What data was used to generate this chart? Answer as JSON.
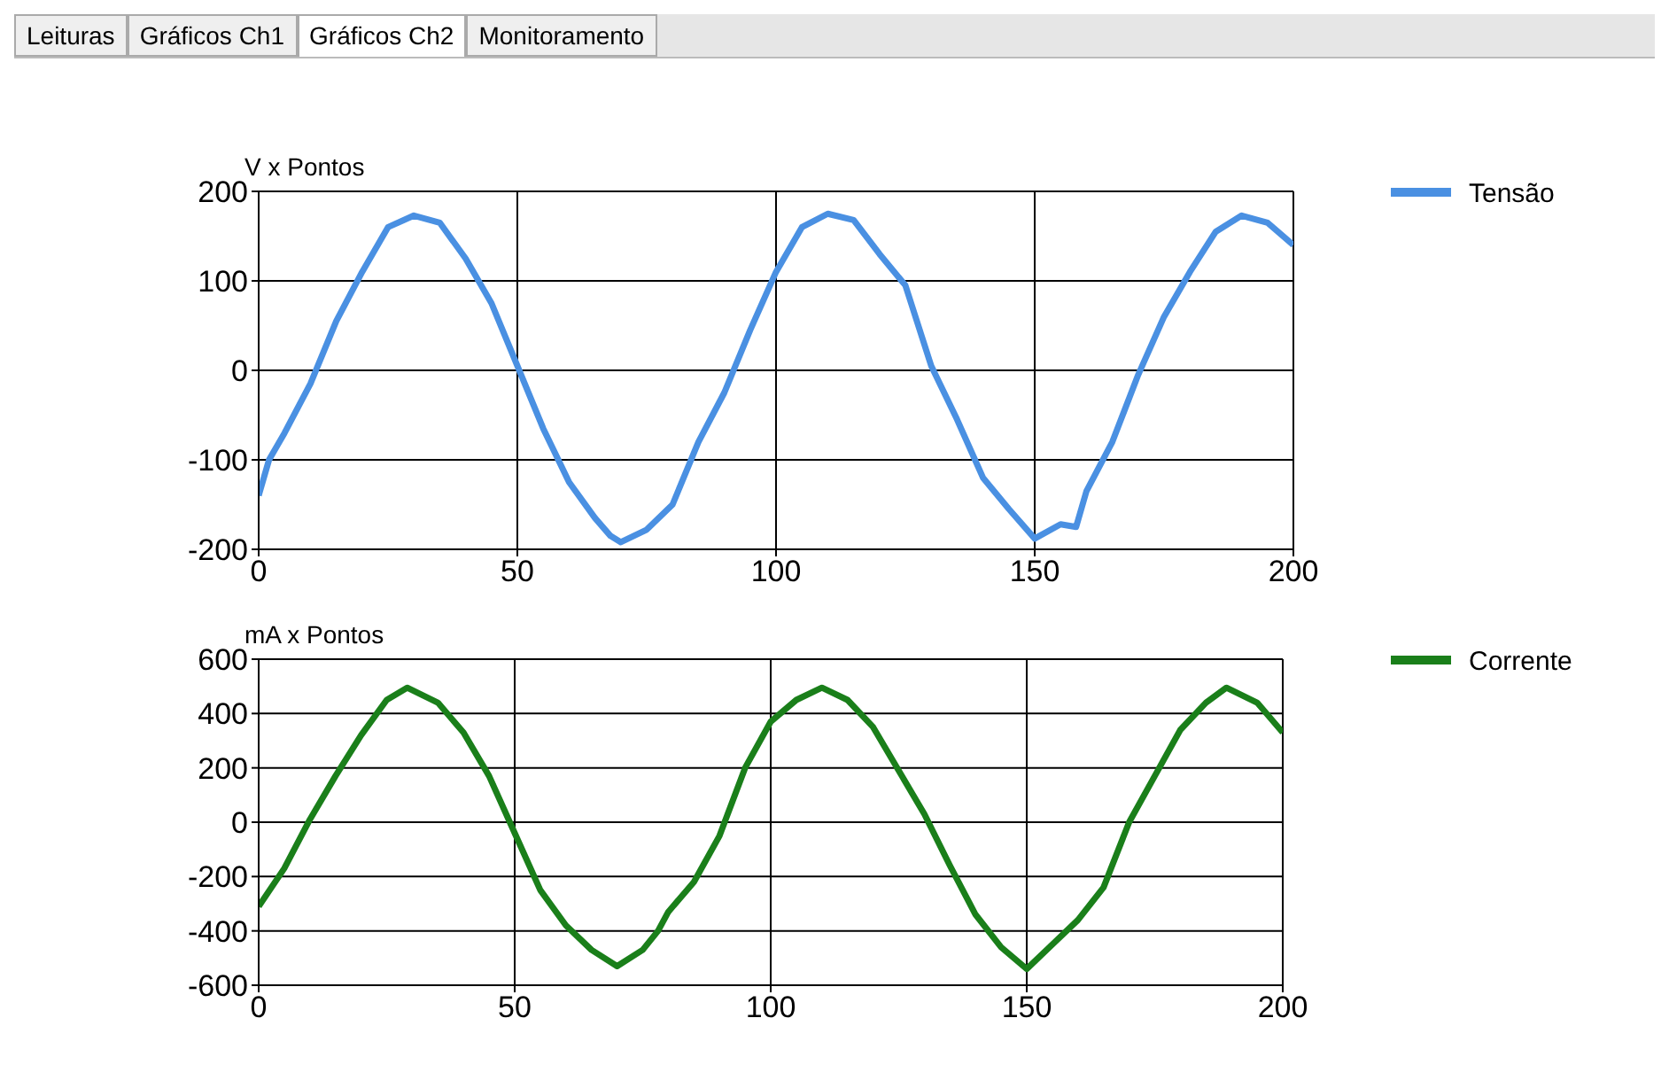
{
  "chart_data": [
    {
      "type": "line",
      "ylabel": "V x Pontos",
      "annotations": [
        "Leituras",
        "Gráficos Ch1",
        "Gráficos Ch2",
        "Monitoramento"
      ],
      "x": [
        0,
        2,
        5,
        10,
        15,
        20,
        25,
        30,
        35,
        40,
        45,
        50,
        55,
        60,
        65,
        68,
        70,
        75,
        80,
        85,
        90,
        95,
        100,
        105,
        110,
        115,
        120,
        125,
        130,
        135,
        140,
        145,
        150,
        155,
        158,
        160,
        165,
        170,
        175,
        180,
        185,
        190,
        195,
        200
      ],
      "series": [
        {
          "name": "Tensão",
          "color": "#4a90e2",
          "values": [
            -140,
            -100,
            -70,
            -15,
            55,
            110,
            160,
            173,
            165,
            125,
            75,
            5,
            -65,
            -125,
            -165,
            -185,
            -192,
            -178,
            -150,
            -80,
            -25,
            45,
            110,
            160,
            175,
            168,
            130,
            95,
            5,
            -55,
            -120,
            -155,
            -188,
            -172,
            -175,
            -135,
            -80,
            -5,
            60,
            110,
            155,
            173,
            165,
            140
          ]
        }
      ],
      "xlim": [
        0,
        200
      ],
      "xticks": [
        0,
        50,
        100,
        150,
        200
      ],
      "ylim": [
        -200,
        200
      ],
      "yticks": [
        -200,
        -100,
        0,
        100,
        200
      ],
      "grid": true,
      "legend": "top right"
    },
    {
      "type": "line",
      "ylabel": "mA x Pontos",
      "x": [
        0,
        5,
        10,
        15,
        20,
        25,
        29,
        35,
        40,
        45,
        50,
        55,
        60,
        65,
        70,
        75,
        78,
        80,
        85,
        90,
        95,
        100,
        105,
        110,
        115,
        120,
        125,
        130,
        135,
        140,
        145,
        150,
        155,
        160,
        165,
        170,
        175,
        180,
        185,
        189,
        195,
        200
      ],
      "series": [
        {
          "name": "Corrente",
          "color": "#1a7f1a",
          "values": [
            -310,
            -170,
            10,
            170,
            320,
            450,
            495,
            440,
            330,
            170,
            -40,
            -250,
            -380,
            -470,
            -530,
            -470,
            -400,
            -330,
            -220,
            -50,
            200,
            370,
            450,
            495,
            450,
            350,
            190,
            30,
            -160,
            -340,
            -460,
            -540,
            -450,
            -360,
            -240,
            0,
            170,
            340,
            440,
            495,
            440,
            330
          ]
        }
      ],
      "xlim": [
        0,
        200
      ],
      "xticks": [
        0,
        50,
        100,
        150,
        200
      ],
      "ylim": [
        -600,
        600
      ],
      "yticks": [
        -600,
        -400,
        -200,
        0,
        200,
        400,
        600
      ],
      "grid": true,
      "legend": "top right"
    }
  ]
}
